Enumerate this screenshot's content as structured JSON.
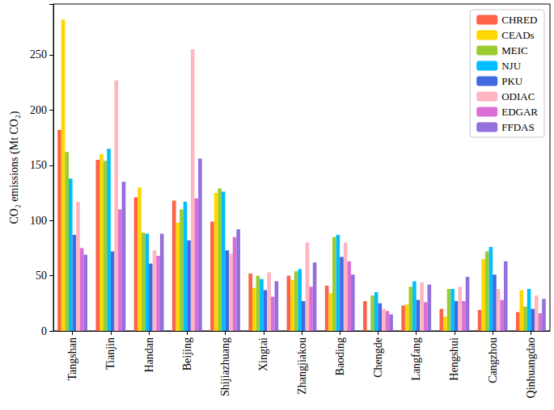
{
  "chart_data": {
    "type": "bar",
    "y_label": "CO₂ emissions (Mt CO₂)",
    "categories": [
      "Tangshan",
      "Tianjin",
      "Handan",
      "Beijing",
      "Shijiazhuang",
      "Xingtai",
      "Zhangjiakou",
      "Baoding",
      "Chengde",
      "Langfang",
      "Hengshui",
      "Cangzhou",
      "Qinhuangdao"
    ],
    "series": [
      {
        "name": "CHRED",
        "color": "#ff6347",
        "values": [
          182,
          155,
          121,
          118,
          99,
          52,
          50,
          41,
          27,
          23,
          20,
          19,
          17
        ]
      },
      {
        "name": "CEADs",
        "color": "#ffd700",
        "values": [
          282,
          160,
          130,
          98,
          125,
          39,
          46,
          34,
          null,
          24,
          13,
          65,
          37
        ]
      },
      {
        "name": "MEIC",
        "color": "#9acd32",
        "values": [
          162,
          154,
          89,
          110,
          129,
          50,
          54,
          85,
          32,
          40,
          38,
          72,
          22
        ]
      },
      {
        "name": "NJU",
        "color": "#00bfff",
        "values": [
          138,
          165,
          88,
          117,
          126,
          47,
          56,
          87,
          35,
          45,
          38,
          76,
          38
        ]
      },
      {
        "name": "PKU",
        "color": "#4169e1",
        "values": [
          87,
          72,
          61,
          82,
          73,
          37,
          27,
          67,
          25,
          28,
          27,
          51,
          20
        ]
      },
      {
        "name": "ODIAC",
        "color": "#ffb6c1",
        "values": [
          117,
          227,
          73,
          255,
          70,
          53,
          80,
          80,
          20,
          44,
          40,
          38,
          32
        ]
      },
      {
        "name": "EDGAR",
        "color": "#da70d6",
        "values": [
          75,
          110,
          68,
          120,
          85,
          31,
          40,
          63,
          18,
          26,
          27,
          28,
          16
        ]
      },
      {
        "name": "FFDAS",
        "color": "#9370db",
        "values": [
          69,
          135,
          88,
          156,
          92,
          45,
          62,
          51,
          15,
          42,
          49,
          63,
          29
        ]
      }
    ],
    "ylim": [
      0,
      296
    ],
    "yticks": [
      0,
      50,
      100,
      150,
      200,
      250
    ],
    "grid": false,
    "legend": "upper right"
  }
}
